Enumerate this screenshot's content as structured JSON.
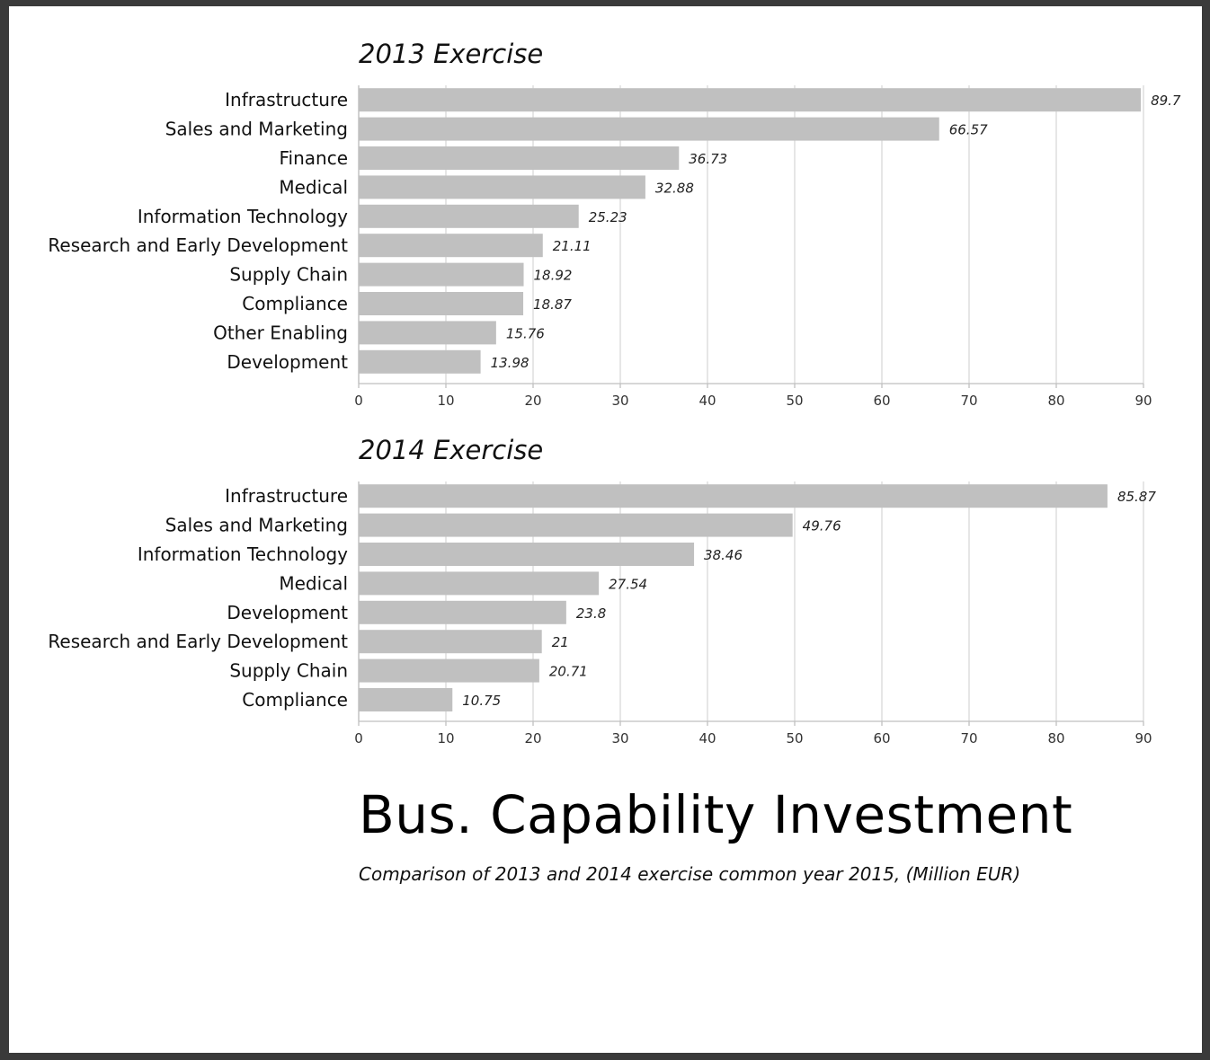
{
  "title": "Bus. Capability Investment",
  "subtitle": "Comparison of 2013 and 2014 exercise common year 2015, (Million EUR)",
  "chart_data": [
    {
      "type": "bar",
      "orientation": "horizontal",
      "title": "2013 Exercise",
      "categories": [
        "Infrastructure",
        "Sales and Marketing",
        "Finance",
        "Medical",
        "Information Technology",
        "Research and Early Development",
        "Supply Chain",
        "Compliance",
        "Other Enabling",
        "Development"
      ],
      "values": [
        89.7,
        66.57,
        36.73,
        32.88,
        25.23,
        21.11,
        18.92,
        18.87,
        15.76,
        13.98
      ],
      "value_labels": [
        "89.7",
        "66.57",
        "36.73",
        "32.88",
        "25.23",
        "21.11",
        "18.92",
        "18.87",
        "15.76",
        "13.98"
      ],
      "xlim": [
        0,
        90
      ],
      "xticks": [
        0,
        10,
        20,
        30,
        40,
        50,
        60,
        70,
        80,
        90
      ],
      "grid": true,
      "bar_color": "#c0c0c0"
    },
    {
      "type": "bar",
      "orientation": "horizontal",
      "title": "2014 Exercise",
      "categories": [
        "Infrastructure",
        "Sales and Marketing",
        "Information Technology",
        "Medical",
        "Development",
        "Research and Early Development",
        "Supply Chain",
        "Compliance"
      ],
      "values": [
        85.87,
        49.76,
        38.46,
        27.54,
        23.8,
        21.0,
        20.71,
        10.75
      ],
      "value_labels": [
        "85.87",
        "49.76",
        "38.46",
        "27.54",
        "23.8",
        "21",
        "20.71",
        "10.75"
      ],
      "xlim": [
        0,
        90
      ],
      "xticks": [
        0,
        10,
        20,
        30,
        40,
        50,
        60,
        70,
        80,
        90
      ],
      "grid": true,
      "bar_color": "#c0c0c0"
    }
  ]
}
